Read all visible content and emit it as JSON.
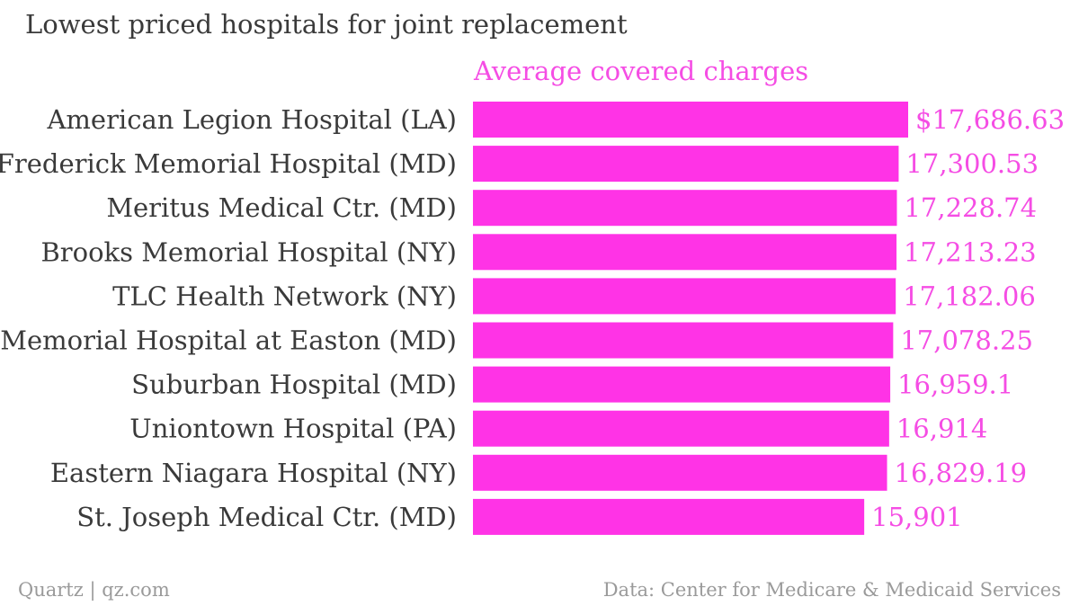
{
  "title": "Lowest priced hospitals for joint replacement",
  "footer": {
    "source_left": "Quartz | qz.com",
    "source_right": "Data: Center for Medicare & Medicaid Services"
  },
  "colors": {
    "bar": "#ff33e6",
    "label": "#f54de4",
    "text": "#3a3a3a",
    "muted": "#9a9a9a"
  },
  "chart_data": {
    "type": "bar",
    "orientation": "horizontal",
    "series_label": "Average covered charges",
    "categories": [
      "American Legion Hospital (LA)",
      "Frederick Memorial Hospital (MD)",
      "Meritus Medical Ctr. (MD)",
      "Brooks Memorial Hospital (NY)",
      "TLC Health Network (NY)",
      "Memorial Hospital at Easton (MD)",
      "Suburban Hospital (MD)",
      "Uniontown Hospital (PA)",
      "Eastern Niagara Hospital (NY)",
      "St. Joseph Medical Ctr. (MD)"
    ],
    "values": [
      17686.63,
      17300.53,
      17228.74,
      17213.23,
      17182.06,
      17078.25,
      16959.1,
      16914,
      16829.19,
      15901
    ],
    "value_labels": [
      "$17,686.63",
      "17,300.53",
      "17,228.74",
      "17,213.23",
      "17,182.06",
      "17,078.25",
      "16,959.1",
      "16,914",
      "16,829.19",
      "15,901"
    ],
    "xlim": [
      0,
      17686.63
    ],
    "grid": false,
    "legend": "none"
  }
}
